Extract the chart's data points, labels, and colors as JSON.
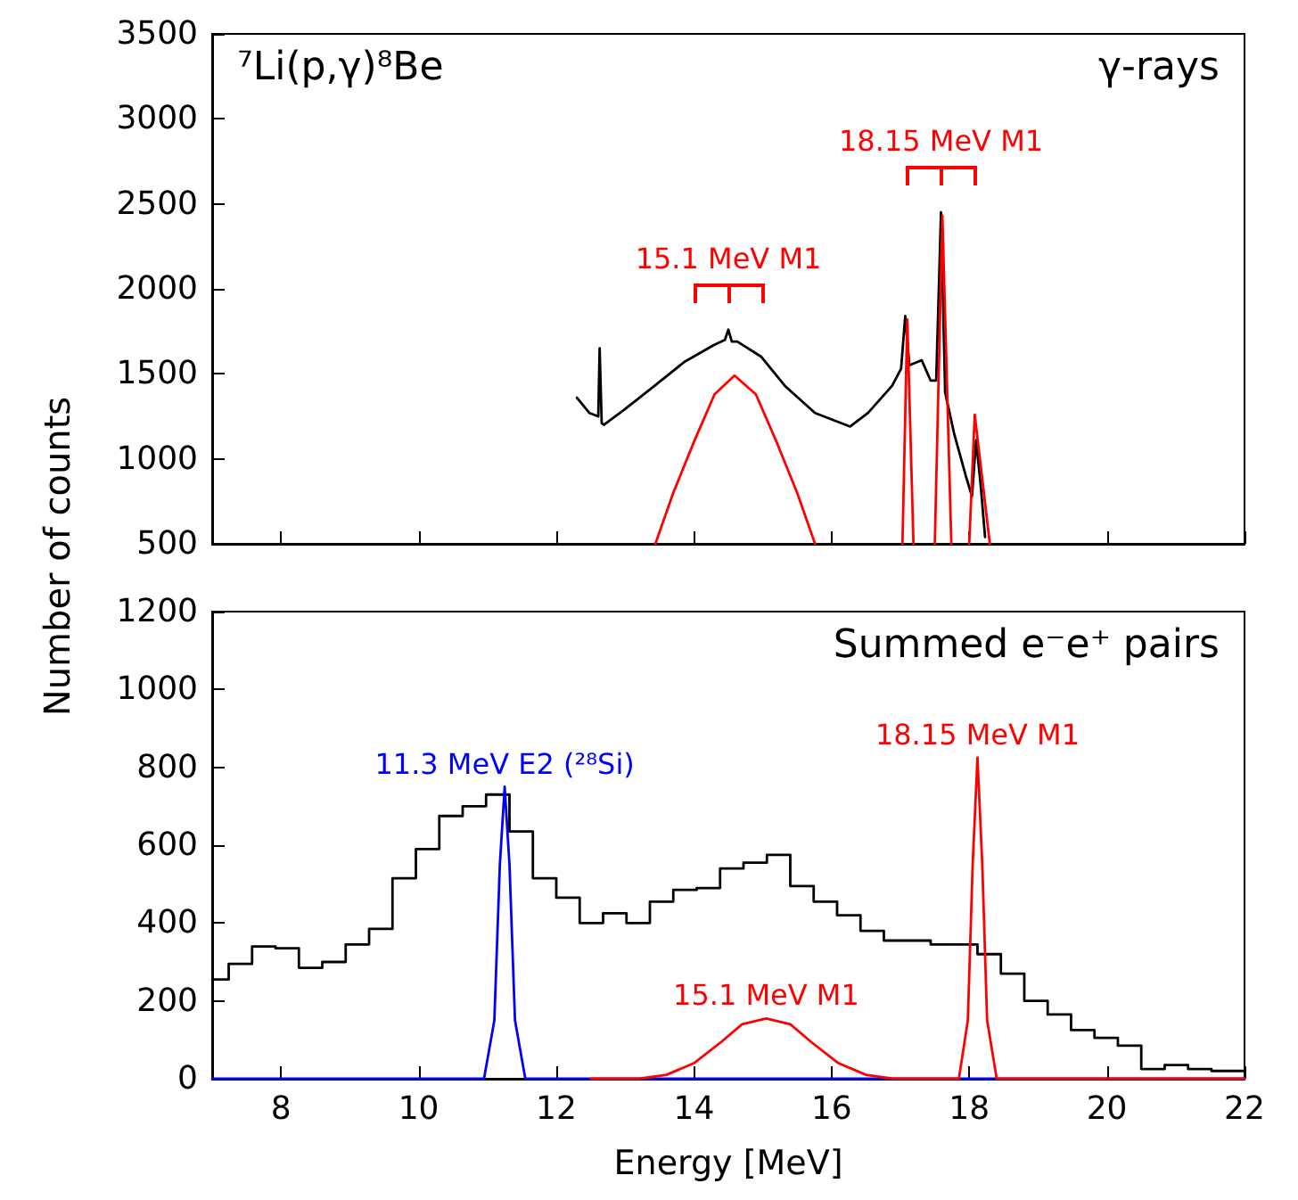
{
  "chart_data": [
    {
      "type": "line",
      "ylabel": "Number of counts",
      "xlim": [
        7,
        22
      ],
      "xticks": [
        8,
        10,
        12,
        14,
        16,
        18,
        20,
        22
      ],
      "ylim": [
        500,
        3500
      ],
      "yticks": [
        500,
        1000,
        1500,
        2000,
        2500,
        3000,
        3500
      ],
      "tick_labels": "y",
      "marker": "none",
      "line_style": "solid",
      "annotations": [
        "⁷Li(p,γ)⁸Be",
        "γ-rays",
        {
          "text": "15.1 MeV M1",
          "x": 14.5,
          "y": 1760
        },
        {
          "text": "18.15 MeV M1",
          "x": 17.59,
          "y": 2450
        }
      ],
      "series": [
        {
          "color": "#000000",
          "x": [
            12.3,
            12.48,
            12.61,
            12.63,
            12.66,
            12.69,
            12.99,
            13.43,
            13.86,
            14.29,
            14.45,
            14.5,
            14.55,
            14.63,
            14.98,
            15.32,
            15.76,
            16.27,
            16.53,
            16.88,
            17.01,
            17.07,
            17.13,
            17.31,
            17.44,
            17.52,
            17.59,
            17.65,
            17.78,
            17.95,
            18.04,
            18.1,
            18.17,
            18.23
          ],
          "values": [
            1360,
            1270,
            1250,
            1650,
            1210,
            1200,
            1290,
            1430,
            1570,
            1670,
            1700,
            1760,
            1690,
            1690,
            1600,
            1430,
            1270,
            1190,
            1270,
            1430,
            1530,
            1840,
            1550,
            1580,
            1460,
            1460,
            2450,
            1390,
            1150,
            900,
            780,
            1110,
            830,
            540
          ]
        },
        {
          "color": "#ff0000",
          "x": [
            13.44,
            13.7,
            14.0,
            14.3,
            14.59,
            14.9,
            15.2,
            15.5,
            15.76,
            16.9,
            17.03,
            17.1,
            17.19,
            17.4,
            17.5,
            17.61,
            17.74,
            17.9,
            18.0,
            18.08,
            18.3
          ],
          "values": [
            500,
            800,
            1100,
            1380,
            1490,
            1380,
            1100,
            800,
            500,
            null,
            500,
            1820,
            500,
            null,
            500,
            2430,
            500,
            null,
            500,
            1260,
            500
          ]
        }
      ]
    },
    {
      "type": "line",
      "xlabel": "Energy [MeV]",
      "xlim": [
        7,
        22
      ],
      "xticks": [
        8,
        10,
        12,
        14,
        16,
        18,
        20,
        22
      ],
      "ylim": [
        0,
        1200
      ],
      "yticks": [
        0,
        200,
        400,
        600,
        800,
        1000,
        1200
      ],
      "marker": "none",
      "line_style": "solid",
      "annotations": [
        "Summed e⁻e⁺ pairs",
        {
          "text": "11.3 MeV E2 (²⁸Si)",
          "x": 11.25,
          "y": 750
        },
        {
          "text": "15.1 MeV M1",
          "x": 15.05,
          "y": 155
        },
        {
          "text": "18.15 MeV M1",
          "x": 18.12,
          "y": 825
        }
      ],
      "series": [
        {
          "type": "step",
          "color": "#000000",
          "x": [
            7.0,
            7.24,
            7.58,
            7.92,
            8.26,
            8.6,
            8.94,
            9.28,
            9.62,
            9.96,
            10.3,
            10.64,
            10.98,
            11.32,
            11.66,
            12.0,
            12.34,
            12.68,
            13.02,
            13.36,
            13.7,
            14.04,
            14.38,
            14.72,
            15.06,
            15.4,
            15.74,
            16.08,
            16.42,
            16.76,
            17.1,
            17.44,
            17.78,
            18.12,
            18.46,
            18.8,
            19.14,
            19.48,
            19.82,
            20.16,
            20.5,
            20.84,
            21.18,
            21.52,
            21.86,
            22
          ],
          "values": [
            255,
            295,
            340,
            335,
            285,
            300,
            345,
            385,
            515,
            590,
            675,
            700,
            730,
            635,
            515,
            465,
            400,
            425,
            400,
            455,
            485,
            490,
            540,
            555,
            575,
            495,
            455,
            420,
            380,
            355,
            355,
            345,
            345,
            320,
            270,
            200,
            165,
            125,
            105,
            85,
            25,
            35,
            25,
            20,
            20,
            20
          ]
        },
        {
          "color": "#0000ff",
          "x": [
            7,
            10.95,
            11.1,
            11.18,
            11.25,
            11.32,
            11.4,
            11.55,
            22
          ],
          "values": [
            0,
            0,
            150,
            550,
            750,
            550,
            150,
            0,
            0
          ]
        },
        {
          "color": "#ff0000",
          "x": [
            12.5,
            13.2,
            13.6,
            14.0,
            14.4,
            14.7,
            15.05,
            15.4,
            15.7,
            16.1,
            16.5,
            16.9,
            17.85,
            17.98,
            18.05,
            18.12,
            18.19,
            18.26,
            18.4,
            22
          ],
          "values": [
            0,
            0,
            10,
            40,
            95,
            140,
            155,
            140,
            95,
            40,
            10,
            0,
            0,
            150,
            550,
            825,
            550,
            150,
            0,
            0
          ]
        }
      ]
    }
  ]
}
